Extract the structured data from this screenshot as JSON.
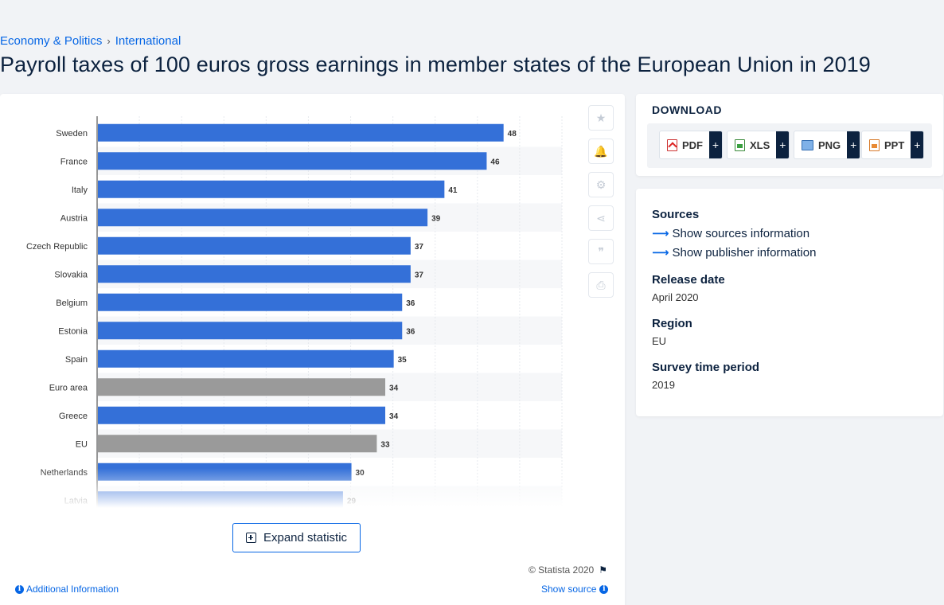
{
  "breadcrumb": {
    "level1": "Economy & Politics",
    "separator": "›",
    "level2": "International"
  },
  "page_title": "Payroll taxes of 100 euros gross earnings in member states of the European Union in 2019",
  "chart_data": {
    "type": "bar",
    "orientation": "horizontal",
    "categories": [
      "Sweden",
      "France",
      "Italy",
      "Austria",
      "Czech Republic",
      "Slovakia",
      "Belgium",
      "Estonia",
      "Spain",
      "Euro area",
      "Greece",
      "EU",
      "Netherlands",
      "Latvia"
    ],
    "values": [
      48,
      46,
      41,
      39,
      37,
      37,
      36,
      36,
      35,
      34,
      34,
      33,
      30,
      29
    ],
    "highlight": [
      false,
      false,
      false,
      false,
      false,
      false,
      false,
      false,
      false,
      true,
      false,
      true,
      false,
      false
    ],
    "colors": {
      "bar": "#3470d8",
      "aggregate": "#9a9a9a"
    },
    "xlim": [
      0,
      55
    ],
    "grid": true,
    "title": "",
    "xlabel": "",
    "ylabel": ""
  },
  "tools": {
    "icons": [
      "star-icon",
      "bell-icon",
      "gear-icon",
      "share-icon",
      "quote-icon",
      "print-icon"
    ],
    "glyphs": [
      "★",
      "🔔",
      "⚙",
      "⋖",
      "❞",
      "⎙"
    ]
  },
  "expand_label": "Expand statistic",
  "copyright": "© Statista 2020",
  "additional_information": "Additional Information",
  "show_source": "Show source",
  "download": {
    "title": "DOWNLOAD",
    "buttons": [
      {
        "label": "PDF",
        "plus": "+"
      },
      {
        "label": "XLS",
        "plus": "+"
      },
      {
        "label": "PNG",
        "plus": "+"
      },
      {
        "label": "PPT",
        "plus": "+"
      }
    ]
  },
  "info": {
    "sources_heading": "Sources",
    "show_sources": "Show sources information",
    "show_publisher": "Show publisher information",
    "release_heading": "Release date",
    "release_value": "April 2020",
    "region_heading": "Region",
    "region_value": "EU",
    "period_heading": "Survey time period",
    "period_value": "2019"
  }
}
